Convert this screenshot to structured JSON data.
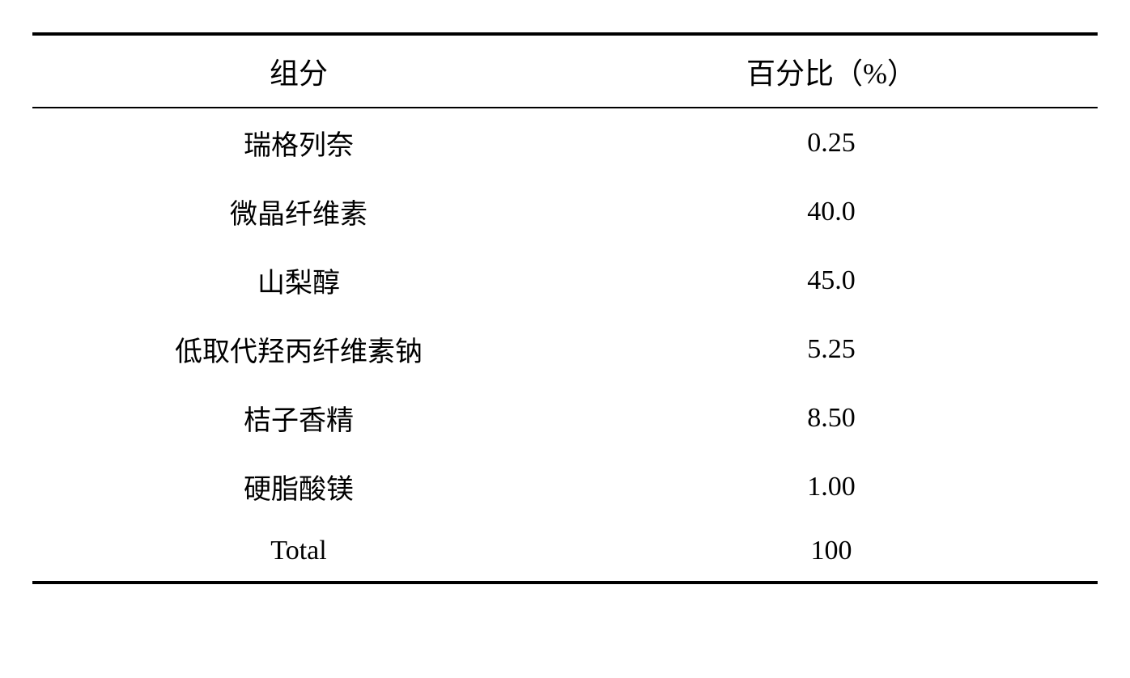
{
  "table": {
    "columns": [
      "组分",
      "百分比（%）"
    ],
    "rows": [
      {
        "name": "瑞格列奈",
        "value": "0.25",
        "latin": false
      },
      {
        "name": "微晶纤维素",
        "value": "40.0",
        "latin": false
      },
      {
        "name": "山梨醇",
        "value": "45.0",
        "latin": false
      },
      {
        "name": "低取代羟丙纤维素钠",
        "value": "5.25",
        "latin": false
      },
      {
        "name": "桔子香精",
        "value": "8.50",
        "latin": false
      },
      {
        "name": "硬脂酸镁",
        "value": "1.00",
        "latin": false
      },
      {
        "name": "Total",
        "value": "100",
        "latin": true
      }
    ],
    "border_color": "#000000",
    "background_color": "#ffffff",
    "header_fontsize": 36,
    "body_fontsize": 34,
    "top_rule_width": 4,
    "mid_rule_width": 2,
    "bottom_rule_width": 4
  }
}
